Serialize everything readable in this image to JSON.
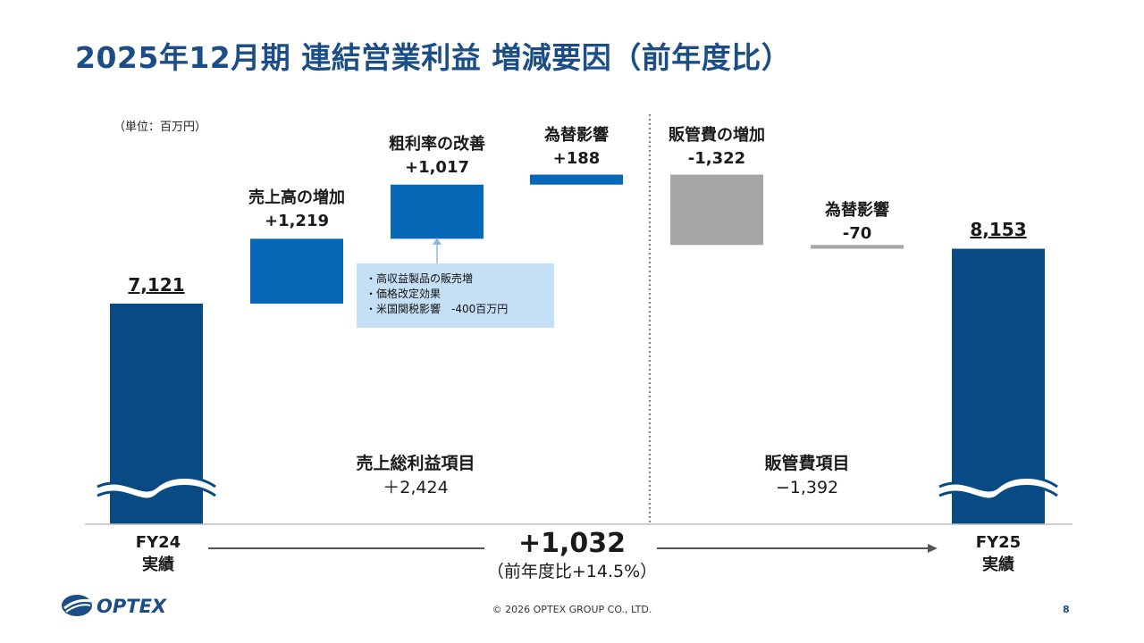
{
  "title": "2025年12月期 連結営業利益 増減要因（前年度比）",
  "unit_label": "（単位：百万円）",
  "chart_data": {
    "type": "bar",
    "subtype": "waterfall",
    "title": "2025年12月期 連結営業利益 増減要因（前年度比）",
    "unit": "百万円",
    "steps": [
      {
        "name": "FY24 実績",
        "kind": "total",
        "value": 7121,
        "value_label": "7,121"
      },
      {
        "name": "売上高の増加",
        "kind": "increase",
        "value": 1219,
        "value_label": "+1,219"
      },
      {
        "name": "粗利率の改善",
        "kind": "increase",
        "value": 1017,
        "value_label": "+1,017"
      },
      {
        "name": "為替影響",
        "kind": "increase",
        "value": 188,
        "value_label": "+188"
      },
      {
        "name": "販管費の増加",
        "kind": "decrease",
        "value": -1322,
        "value_label": "-1,322"
      },
      {
        "name": "為替影響",
        "kind": "decrease",
        "value": -70,
        "value_label": "-70"
      },
      {
        "name": "FY25 実績",
        "kind": "total",
        "value": 8153,
        "value_label": "8,153"
      }
    ],
    "groups": [
      {
        "name": "売上総利益項目",
        "value_label": "＋2,424"
      },
      {
        "name": "販管費項目",
        "value_label": "−1,392"
      }
    ],
    "colors": {
      "total": "#084b84",
      "increase": "#0768b8",
      "decrease": "#a6a6a6"
    }
  },
  "fy24": {
    "line1": "FY24",
    "line2": "実績"
  },
  "fy25": {
    "line1": "FY25",
    "line2": "実績"
  },
  "center_total": {
    "value": "+1,032",
    "sub": "（前年度比+14.5%）"
  },
  "note_items": [
    "・高収益製品の販売増",
    "・価格改定効果",
    "・米国関税影響　-400百万円"
  ],
  "footer": "© 2026 OPTEX GROUP CO., LTD.",
  "page_number": "8",
  "logo_text": "OPTEX"
}
